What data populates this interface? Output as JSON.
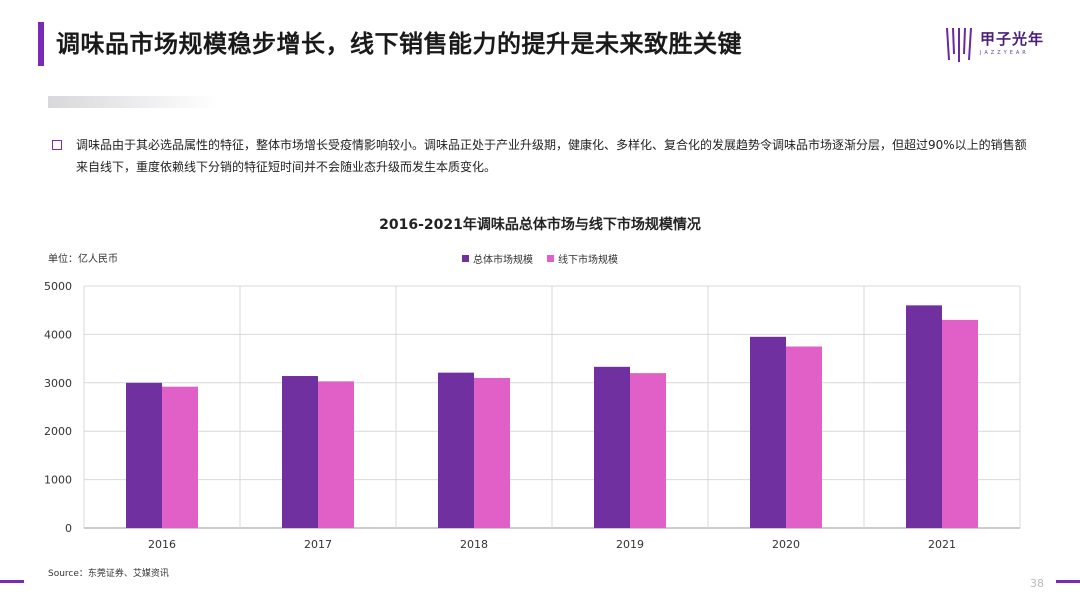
{
  "header": {
    "title": "调味品市场规模稳步增长，线下销售能力的提升是未来致胜关键",
    "logo_text": "甲子光年",
    "logo_sub": "JAZZYEAR"
  },
  "body": {
    "description": "调味品由于其必选品属性的特征，整体市场增长受疫情影响较小。调味品正处于产业升级期，健康化、多样化、复合化的发展趋势令调味品市场逐渐分层，但超过90%以上的销售额来自线下，重度依赖线下分销的特征短时间并不会随业态升级而发生本质变化。"
  },
  "chart_data": {
    "type": "bar",
    "title": "2016-2021年调味品总体市场与线下市场规模情况",
    "unit_label": "单位：亿人民币",
    "categories": [
      "2016",
      "2017",
      "2018",
      "2019",
      "2020",
      "2021"
    ],
    "series": [
      {
        "name": "总体市场规模",
        "values": [
          3000,
          3140,
          3210,
          3330,
          3950,
          4600
        ],
        "color": "#7030a0"
      },
      {
        "name": "线下市场规模",
        "values": [
          2920,
          3030,
          3100,
          3200,
          3750,
          4300
        ],
        "color": "#e060c8"
      }
    ],
    "ylim": [
      0,
      5000
    ],
    "yticks": [
      "0",
      "1000",
      "2000",
      "3000",
      "4000",
      "5000"
    ],
    "grid": true,
    "legend_position": "top"
  },
  "footer": {
    "source": "Source：东莞证券、艾媒资讯",
    "page": "38"
  }
}
